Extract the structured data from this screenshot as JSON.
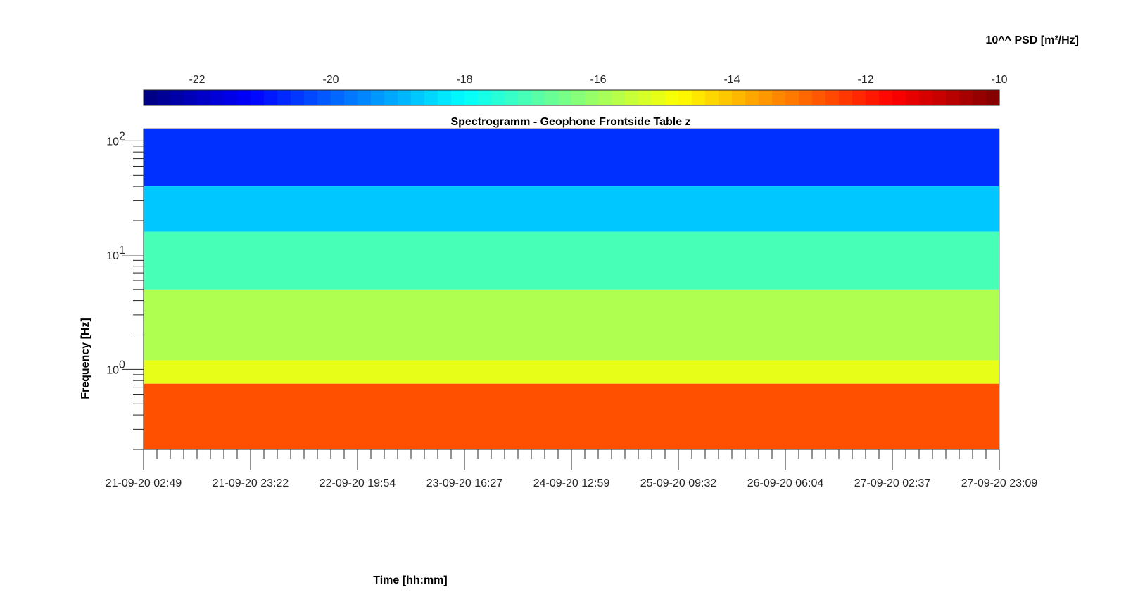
{
  "chart_data": {
    "type": "heatmap",
    "title": "Spectrogramm - Geophone Frontside Table z",
    "xlabel": "Time [hh:mm]",
    "ylabel": "Frequency [Hz]",
    "y_scale": "log",
    "ylim": [
      0.2,
      128
    ],
    "y_tick_values": [
      1,
      10,
      100
    ],
    "y_tick_labels": [
      "10",
      "10",
      "10"
    ],
    "y_tick_exponents": [
      "0",
      "1",
      "2"
    ],
    "x_tick_labels": [
      "21-09-20 02:49",
      "21-09-20 23:22",
      "22-09-20 19:54",
      "23-09-20 16:27",
      "24-09-20 12:59",
      "25-09-20 09:32",
      "26-09-20 06:04",
      "27-09-20 02:37",
      "27-09-20 23:09"
    ],
    "colorbar": {
      "label": "10^^ PSD [m²/Hz]",
      "range": [
        -22.8,
        -10
      ],
      "tick_values": [
        -22,
        -20,
        -18,
        -16,
        -14,
        -12,
        -10
      ],
      "tick_labels": [
        "-22",
        "-20",
        "-18",
        "-16",
        "-14",
        "-12",
        "-10"
      ],
      "colormap": "jet",
      "levels": 64
    },
    "frequency_bands": [
      {
        "f_low": 40,
        "f_high": 128,
        "log10_psd": -20.6
      },
      {
        "f_low": 16,
        "f_high": 40,
        "log10_psd": -18.7
      },
      {
        "f_low": 5,
        "f_high": 16,
        "log10_psd": -17.1
      },
      {
        "f_low": 1.2,
        "f_high": 5,
        "log10_psd": -15.8
      },
      {
        "f_low": 0.75,
        "f_high": 1.2,
        "log10_psd": -15.1
      },
      {
        "f_low": 0.2,
        "f_high": 0.75,
        "log10_psd": -12.6
      }
    ]
  }
}
